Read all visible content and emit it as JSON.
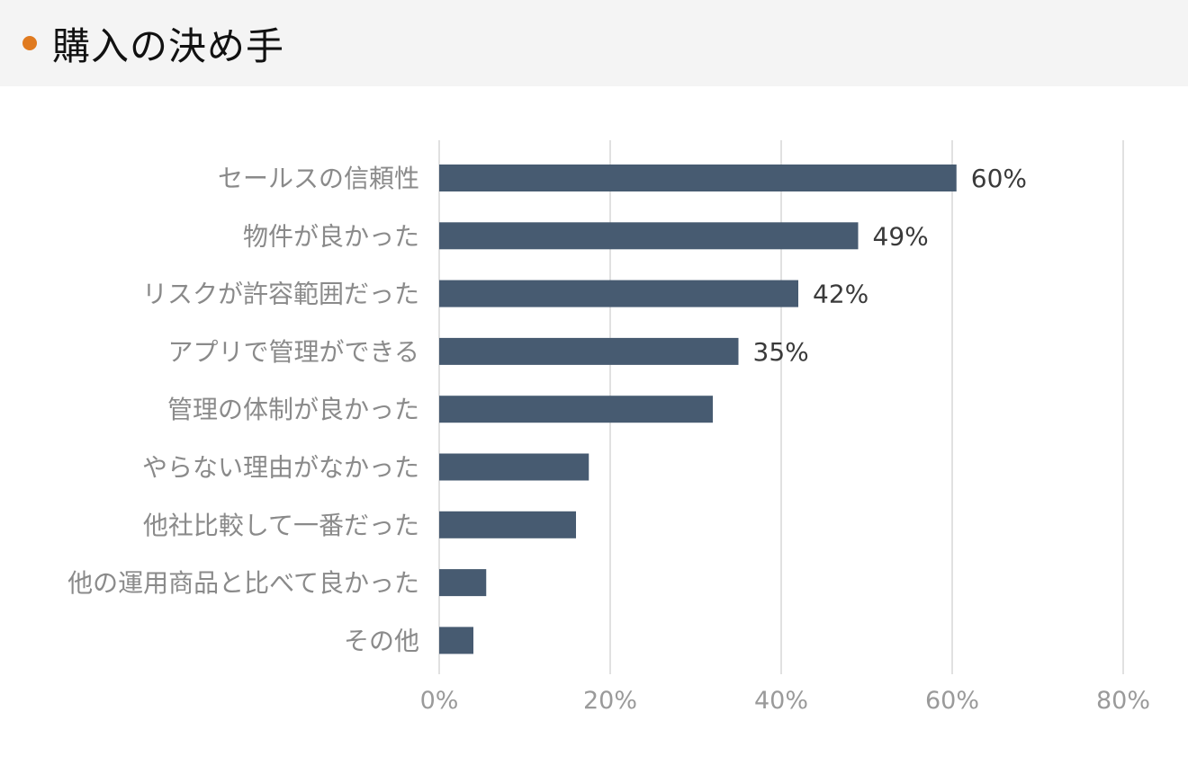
{
  "header": {
    "title": "購入の決め手",
    "accent_color": "#e07a1f"
  },
  "chart_data": {
    "type": "bar",
    "orientation": "horizontal",
    "categories": [
      "セールスの信頼性",
      "物件が良かった",
      "リスクが許容範囲だった",
      "アプリで管理ができる",
      "管理の体制が良かった",
      "やらない理由がなかった",
      "他社比較して一番だった",
      "他の運用商品と比べて良かった",
      "その他"
    ],
    "values": [
      60.5,
      49,
      42,
      35,
      32,
      17.5,
      16,
      5.5,
      4
    ],
    "data_labels": [
      "60%",
      "49%",
      "42%",
      "35%",
      "",
      "",
      "",
      "",
      ""
    ],
    "xlim": [
      0,
      80
    ],
    "xticks": [
      0,
      20,
      40,
      60,
      80
    ],
    "xtick_labels": [
      "0%",
      "20%",
      "40%",
      "60%",
      "80%"
    ],
    "grid": true,
    "bar_color": "#475b71",
    "grid_color": "#e1e1e1"
  }
}
